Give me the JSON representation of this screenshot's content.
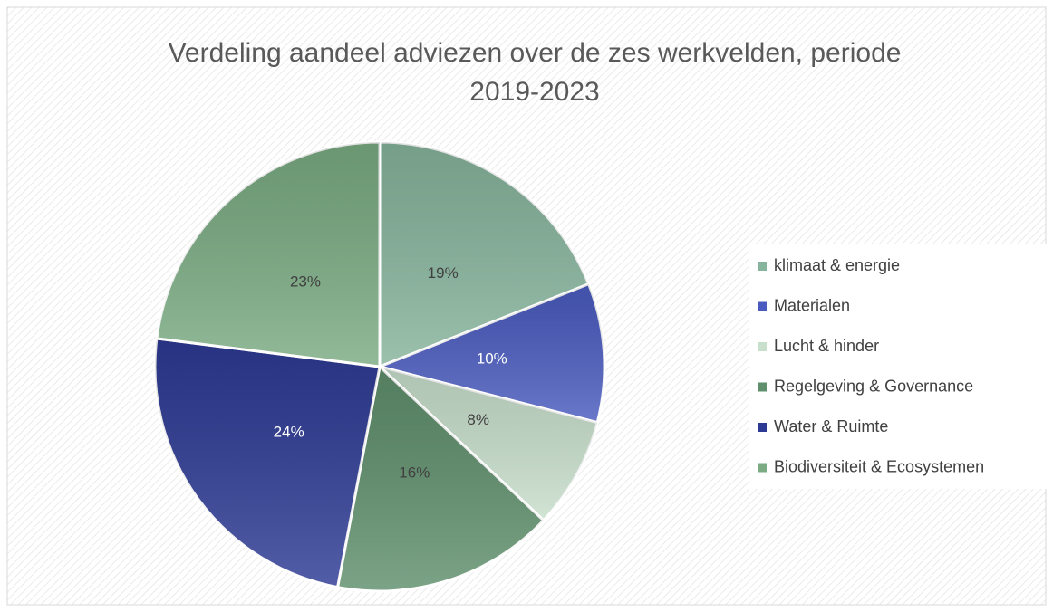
{
  "chart_data": {
    "type": "pie",
    "title": "Verdeling aandeel adviezen over de zes werkvelden, periode 2019-2023",
    "categories": [
      "klimaat & energie",
      "Materialen",
      "Lucht & hinder",
      "Regelgeving & Governance",
      "Water & Ruimte",
      "Biodiversiteit & Ecosystemen"
    ],
    "values": [
      19,
      10,
      8,
      16,
      24,
      23
    ],
    "value_labels": [
      "19%",
      "10%",
      "8%",
      "16%",
      "24%",
      "23%"
    ],
    "colors": [
      "#86b49c",
      "#4a5bbf",
      "#c8dfcc",
      "#5f8f6c",
      "#2d3a94",
      "#7aab82"
    ],
    "legend": "right"
  }
}
